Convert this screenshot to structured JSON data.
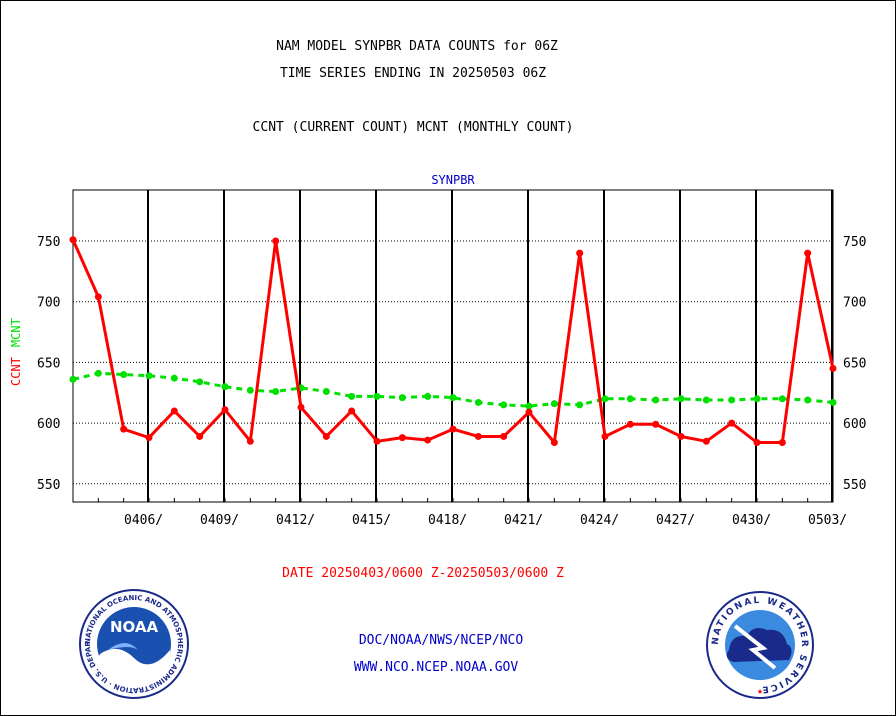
{
  "header": {
    "title_line1": "NAM MODEL SYNPBR DATA COUNTS for 06Z",
    "title_line2": "TIME SERIES ENDING IN 20250503 06Z",
    "subtitle": "CCNT (CURRENT COUNT) MCNT (MONTHLY COUNT)"
  },
  "footer": {
    "date_range": "DATE 20250403/0600 Z-20250503/0600 Z",
    "org_line": "DOC/NOAA/NWS/NCEP/NCO",
    "url_line": "WWW.NCO.NCEP.NOAA.GOV"
  },
  "logos": {
    "noaa_text": "NOAA",
    "noaa_ring": "NATIONAL OCEANIC AND ATMOSPHERIC ADMINISTRATION · U.S. DEPARTMENT OF COMMERCE ·",
    "nws_ring": "NATIONAL WEATHER SERVICE"
  },
  "colors": {
    "ccnt": "#ff0000",
    "mcnt": "#00e000",
    "panel_title": "#0000cc",
    "footer_text": "#0000cc",
    "date_text": "#ff0000"
  },
  "chart_data": {
    "type": "line",
    "panel_title": "SYNPBR",
    "ylabel_left": [
      "CCNT",
      "MCNT"
    ],
    "y_ticks": [
      550,
      600,
      650,
      700,
      750
    ],
    "y_tick_labels": [
      "550",
      "600",
      "650",
      "700",
      "750"
    ],
    "ylim": [
      535,
      792
    ],
    "x_range": [
      0,
      30
    ],
    "x_tick_labels": [
      "0406/",
      "0409/",
      "0412/",
      "0415/",
      "0418/",
      "0421/",
      "0424/",
      "0427/",
      "0430/",
      "0503/"
    ],
    "x_tick_positions": [
      3,
      6,
      9,
      12,
      15,
      18,
      21,
      24,
      27,
      30
    ],
    "grid": true,
    "series": [
      {
        "name": "CCNT",
        "x": [
          0,
          1,
          2,
          3,
          4,
          5,
          6,
          7,
          8,
          9,
          10,
          11,
          12,
          13,
          14,
          15,
          16,
          17,
          18,
          19,
          20,
          21,
          22,
          23,
          24,
          25,
          26,
          27,
          28,
          29,
          30
        ],
        "values": [
          751,
          704,
          595,
          588,
          610,
          589,
          611,
          585,
          750,
          613,
          589,
          610,
          585,
          588,
          586,
          595,
          589,
          589,
          609,
          584,
          740,
          589,
          599,
          599,
          589,
          585,
          600,
          584,
          584,
          740,
          645
        ]
      },
      {
        "name": "MCNT",
        "x": [
          0,
          1,
          2,
          3,
          4,
          5,
          6,
          7,
          8,
          9,
          10,
          11,
          12,
          13,
          14,
          15,
          16,
          17,
          18,
          19,
          20,
          21,
          22,
          23,
          24,
          25,
          26,
          27,
          28,
          29,
          30
        ],
        "values": [
          636,
          641,
          640,
          639,
          637,
          634,
          630,
          627,
          626,
          629,
          626,
          622,
          622,
          621,
          622,
          621,
          617,
          615,
          614,
          616,
          615,
          620,
          620,
          619,
          620,
          619,
          619,
          620,
          620,
          619,
          617
        ]
      }
    ]
  }
}
